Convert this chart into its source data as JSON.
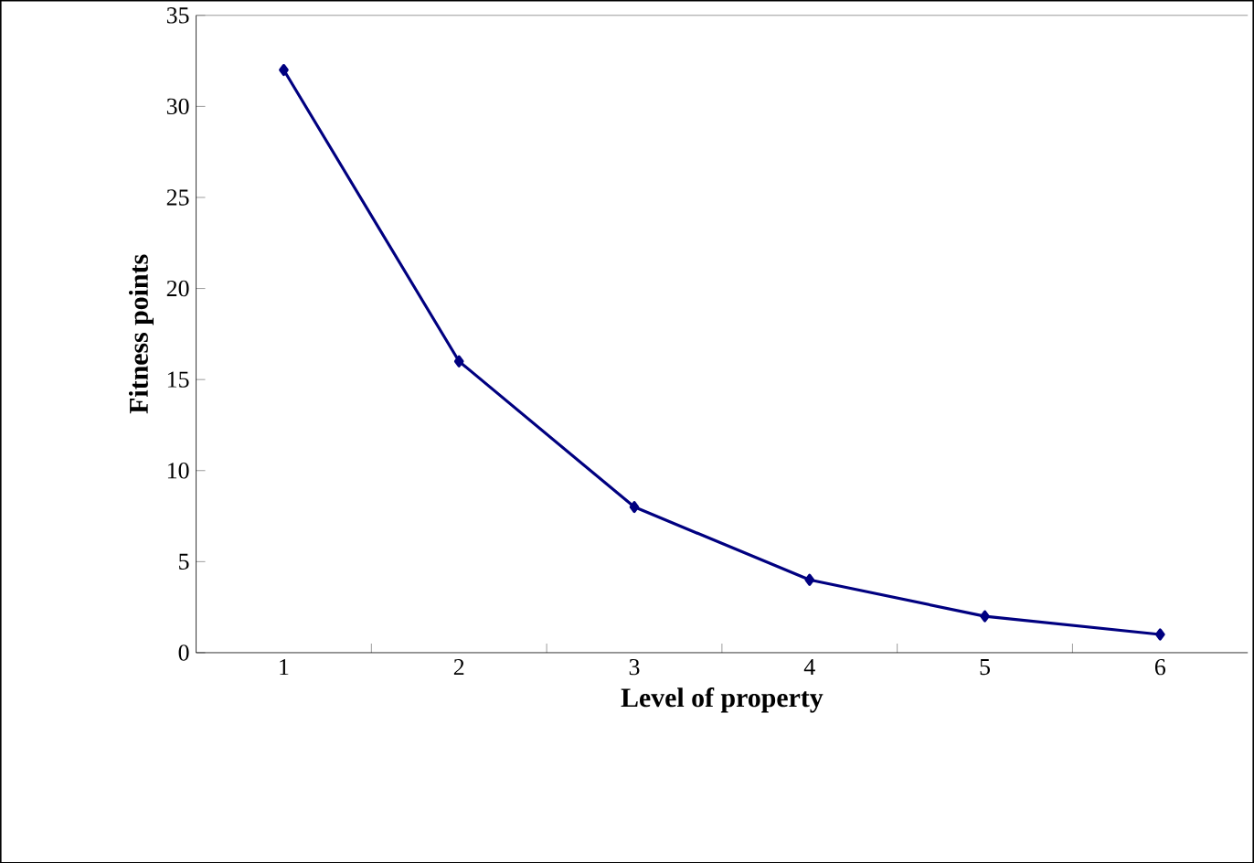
{
  "chart_data": {
    "type": "line",
    "xlabel": "Level of property",
    "ylabel": "Fitness points",
    "categories": [
      "1",
      "2",
      "3",
      "4",
      "5",
      "6"
    ],
    "series": [
      {
        "color": "#000080",
        "values": [
          32,
          16,
          8,
          4,
          2,
          1
        ]
      }
    ],
    "ylim": [
      0,
      35
    ],
    "yticks": [
      0,
      5,
      10,
      15,
      20,
      25,
      30,
      35
    ],
    "marker": "diamond",
    "line_style": "solid"
  }
}
